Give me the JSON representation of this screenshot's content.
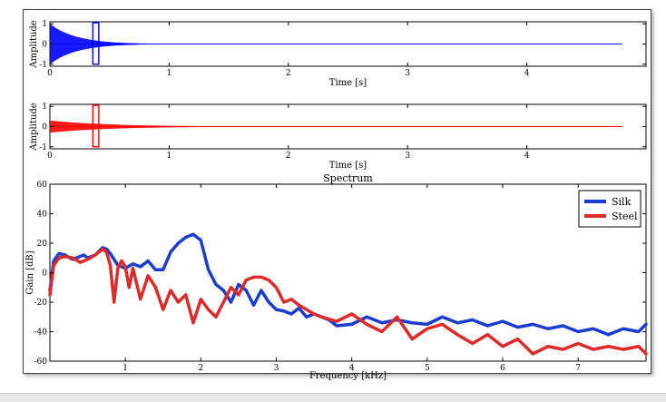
{
  "chart_data": [
    {
      "type": "line",
      "name": "silk-waveform",
      "xlabel": "Time [s]",
      "ylabel": "Amplitude",
      "xlim": [
        0,
        5
      ],
      "ylim": [
        -1.1,
        1.1
      ],
      "xticks": [
        0,
        1,
        2,
        3,
        4
      ],
      "yticks": [
        -1,
        0,
        1
      ],
      "grid": false,
      "color": "#0000ff",
      "envelope": {
        "amplitude": 1.0,
        "decay_time_s": 0.22
      },
      "window": {
        "x0": 0.36,
        "x1": 0.41,
        "y0": -1.0,
        "y1": 1.05
      }
    },
    {
      "type": "line",
      "name": "steel-waveform",
      "xlabel": "Time [s]",
      "ylabel": "Amplitude",
      "xlim": [
        0,
        5
      ],
      "ylim": [
        -1.1,
        1.1
      ],
      "xticks": [
        0,
        1,
        2,
        3,
        4
      ],
      "yticks": [
        -1,
        0,
        1
      ],
      "grid": false,
      "color": "#ff0000",
      "envelope": {
        "amplitude": 0.3,
        "decay_time_s": 0.5
      },
      "window": {
        "x0": 0.36,
        "x1": 0.41,
        "y0": -1.0,
        "y1": 1.05
      }
    },
    {
      "type": "line",
      "title": "Spectrum",
      "xlabel": "Frequency [kHz]",
      "ylabel": "Gain [dB]",
      "xlim": [
        0,
        7.9
      ],
      "ylim": [
        -60,
        60
      ],
      "xticks": [
        1,
        2,
        3,
        4,
        5,
        6,
        7
      ],
      "yticks": [
        -60,
        -40,
        -20,
        0,
        20,
        40,
        60
      ],
      "grid": false,
      "legend_position": "top-right",
      "series": [
        {
          "name": "Silk",
          "color": "#1a3ccf",
          "x": [
            0.0,
            0.05,
            0.12,
            0.2,
            0.3,
            0.4,
            0.45,
            0.5,
            0.6,
            0.7,
            0.75,
            0.8,
            0.9,
            1.0,
            1.1,
            1.2,
            1.3,
            1.4,
            1.5,
            1.6,
            1.7,
            1.8,
            1.9,
            2.0,
            2.1,
            2.2,
            2.3,
            2.4,
            2.5,
            2.6,
            2.7,
            2.8,
            2.9,
            3.0,
            3.1,
            3.2,
            3.3,
            3.4,
            3.5,
            3.6,
            3.7,
            3.8,
            4.0,
            4.2,
            4.4,
            4.6,
            4.8,
            5.0,
            5.2,
            5.4,
            5.6,
            5.8,
            6.0,
            6.2,
            6.4,
            6.6,
            6.8,
            7.0,
            7.2,
            7.4,
            7.6,
            7.8,
            7.9
          ],
          "y": [
            -12,
            8,
            13,
            12,
            9,
            11,
            12,
            10,
            12,
            17,
            16,
            13,
            5,
            3,
            6,
            4,
            8,
            2,
            2,
            14,
            20,
            24,
            26,
            22,
            2,
            -8,
            -12,
            -20,
            -8,
            -12,
            -22,
            -12,
            -20,
            -25,
            -26,
            -28,
            -24,
            -30,
            -28,
            -30,
            -32,
            -36,
            -35,
            -30,
            -34,
            -32,
            -34,
            -35,
            -30,
            -34,
            -32,
            -36,
            -33,
            -37,
            -35,
            -38,
            -36,
            -40,
            -38,
            -42,
            -38,
            -40,
            -35
          ]
        },
        {
          "name": "Steel",
          "color": "#e02a2a",
          "x": [
            0.0,
            0.05,
            0.12,
            0.2,
            0.3,
            0.4,
            0.5,
            0.6,
            0.7,
            0.75,
            0.8,
            0.85,
            0.9,
            0.95,
            1.0,
            1.05,
            1.1,
            1.2,
            1.3,
            1.4,
            1.5,
            1.6,
            1.7,
            1.8,
            1.9,
            2.0,
            2.1,
            2.2,
            2.3,
            2.4,
            2.5,
            2.6,
            2.7,
            2.8,
            2.9,
            3.0,
            3.1,
            3.2,
            3.3,
            3.4,
            3.5,
            3.6,
            3.8,
            4.0,
            4.2,
            4.4,
            4.6,
            4.8,
            5.0,
            5.2,
            5.4,
            5.6,
            5.8,
            6.0,
            6.2,
            6.4,
            6.6,
            6.8,
            7.0,
            7.2,
            7.4,
            7.6,
            7.8,
            7.9
          ],
          "y": [
            -15,
            5,
            10,
            11,
            10,
            7,
            9,
            12,
            16,
            14,
            5,
            -20,
            3,
            8,
            4,
            -10,
            3,
            -18,
            -2,
            -10,
            -25,
            -12,
            -20,
            -15,
            -34,
            -18,
            -25,
            -30,
            -20,
            -10,
            -15,
            -5,
            -3,
            -3,
            -5,
            -10,
            -20,
            -18,
            -22,
            -25,
            -28,
            -30,
            -33,
            -28,
            -35,
            -40,
            -30,
            -45,
            -38,
            -35,
            -42,
            -48,
            -42,
            -50,
            -45,
            -55,
            -50,
            -52,
            -48,
            -52,
            -50,
            -52,
            -50,
            -55
          ]
        }
      ]
    }
  ]
}
